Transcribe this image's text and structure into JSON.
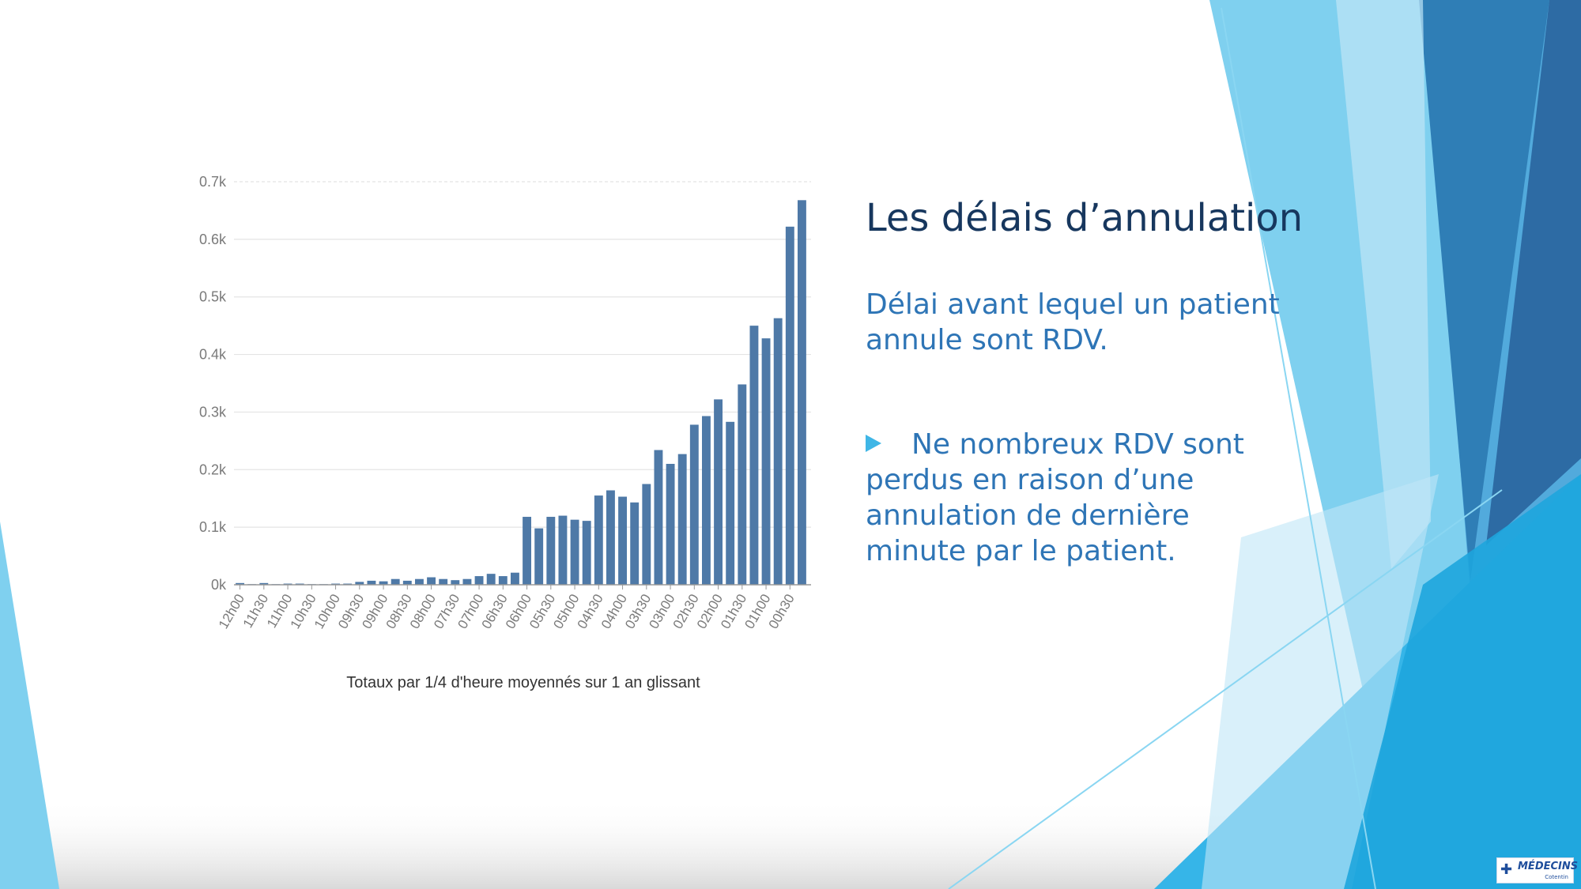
{
  "slide": {
    "title": "Les délais d’annulation",
    "subtitle": "Délai avant lequel un patient annule sont RDV.",
    "bullet": "Ne nombreux RDV sont perdus en raison d’une annulation de dernière minute par le patient.",
    "logo_text": "MÉDECINS",
    "logo_subtext": "Cotentin"
  },
  "colors": {
    "bar": "#4e79a7",
    "grid": "#e4e4e4",
    "title": "#17375e",
    "text_blue": "#2e75b6",
    "bullet_icon": "#3fb6e6"
  },
  "icons": [
    "triangle-bullet-icon",
    "medecins-cross-icon"
  ],
  "chart_data": {
    "type": "bar",
    "title": "",
    "xlabel": "Totaux par 1/4 d'heure moyennés sur 1 an glissant",
    "ylabel": "",
    "ylim": [
      0,
      700
    ],
    "yticks": [
      "0k",
      "0.1k",
      "0.2k",
      "0.3k",
      "0.4k",
      "0.5k",
      "0.6k",
      "0.7k"
    ],
    "grid": true,
    "x_tick_labels": [
      "12h00",
      "11h30",
      "11h00",
      "10h30",
      "10h00",
      "09h30",
      "09h00",
      "08h30",
      "08h00",
      "07h30",
      "07h00",
      "06h30",
      "06h00",
      "05h30",
      "05h00",
      "04h30",
      "04h00",
      "03h30",
      "03h00",
      "02h30",
      "02h00",
      "01h30",
      "01h00",
      "00h30"
    ],
    "values": [
      3,
      1,
      3,
      1,
      2,
      2,
      1,
      1,
      2,
      2,
      5,
      7,
      6,
      10,
      7,
      10,
      13,
      10,
      8,
      10,
      15,
      19,
      15,
      21,
      118,
      98,
      118,
      120,
      113,
      111,
      155,
      164,
      153,
      143,
      175,
      234,
      210,
      227,
      278,
      293,
      322,
      283,
      348,
      450,
      428,
      463,
      622,
      668
    ]
  }
}
